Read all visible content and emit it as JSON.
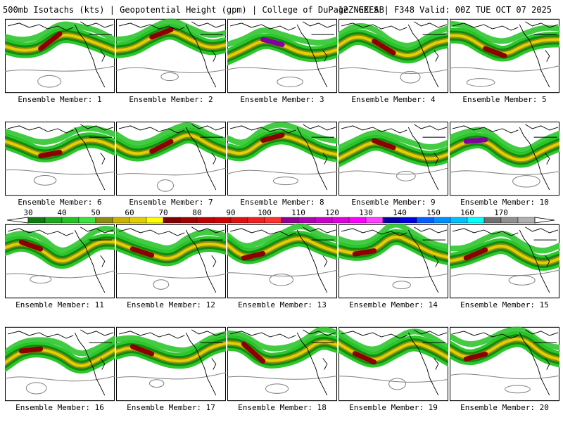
{
  "header": {
    "left": "500mb Isotachs (kts) | Geopotential Height (gpm) | College of DuPage NEXLAB",
    "right": "12Z GEFS | F348 Valid: 00Z TUE OCT 07 2025"
  },
  "panels": [
    {
      "label": "Ensemble Member: 1"
    },
    {
      "label": "Ensemble Member: 2"
    },
    {
      "label": "Ensemble Member: 3"
    },
    {
      "label": "Ensemble Member: 4"
    },
    {
      "label": "Ensemble Member: 5"
    },
    {
      "label": "Ensemble Member: 6"
    },
    {
      "label": "Ensemble Member: 7"
    },
    {
      "label": "Ensemble Member: 8"
    },
    {
      "label": "Ensemble Member: 9"
    },
    {
      "label": "Ensemble Member: 10"
    },
    {
      "label": "Ensemble Member: 11"
    },
    {
      "label": "Ensemble Member: 12"
    },
    {
      "label": "Ensemble Member: 13"
    },
    {
      "label": "Ensemble Member: 14"
    },
    {
      "label": "Ensemble Member: 15"
    },
    {
      "label": "Ensemble Member: 16"
    },
    {
      "label": "Ensemble Member: 17"
    },
    {
      "label": "Ensemble Member: 18"
    },
    {
      "label": "Ensemble Member: 19"
    },
    {
      "label": "Ensemble Member: 20"
    }
  ],
  "colorbar": {
    "unit": "kts",
    "ticks": [
      "30",
      "40",
      "50",
      "60",
      "70",
      "80",
      "90",
      "100",
      "110",
      "120",
      "130",
      "140",
      "150",
      "160",
      "170"
    ],
    "colors": [
      "#0e7a0e",
      "#1ea81e",
      "#22c322",
      "#3ee23e",
      "#8c8c14",
      "#c8b400",
      "#e0d000",
      "#ffff00",
      "#800000",
      "#a00000",
      "#c00000",
      "#d00000",
      "#e01010",
      "#f02020",
      "#ff3030",
      "#900090",
      "#b000b0",
      "#c800c8",
      "#e000e0",
      "#ff00ff",
      "#ff40ff",
      "#0000a0",
      "#0000e0",
      "#0060ff",
      "#0090ff",
      "#00c0ff",
      "#00ffff",
      "#707070",
      "#909090",
      "#b0b0b0"
    ]
  },
  "colors": {
    "jet_light": "#22c322",
    "jet_mid": "#0e8c0e",
    "jet_olive": "#8c8c14",
    "jet_yellow": "#e0d000",
    "jet_red": "#8c0000",
    "jet_purple": "#8000a0",
    "height_contour": "#808080",
    "coast": "#000000"
  }
}
